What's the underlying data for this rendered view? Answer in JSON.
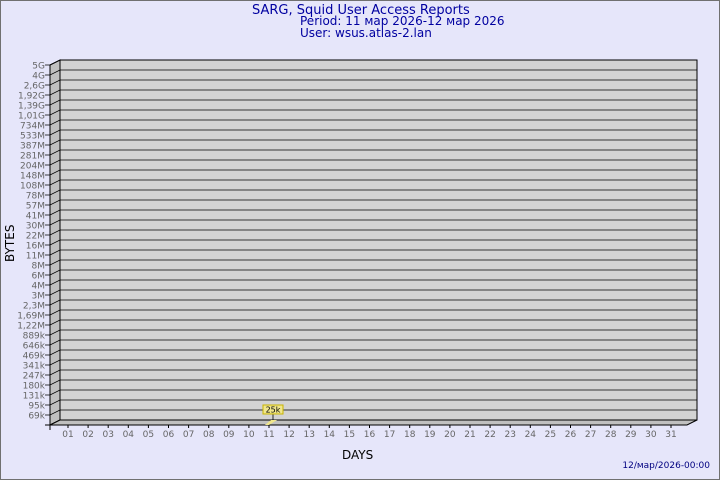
{
  "header": {
    "title": "SARG, Squid User Access Reports",
    "period": "Period: 11 мар 2026-12 мар 2026",
    "user": "User: wsus.atlas-2.lan"
  },
  "footer": {
    "timestamp": "12/мар/2026-00:00"
  },
  "chart_data": {
    "type": "bar",
    "title": "SARG, Squid User Access Reports",
    "xlabel": "DAYS",
    "ylabel": "BYTES",
    "y_scale": "log",
    "y_ticks": [
      "5G",
      "4G",
      "2,6G",
      "1,92G",
      "1,39G",
      "1,01G",
      "734M",
      "533M",
      "387M",
      "281M",
      "204M",
      "148M",
      "108M",
      "78M",
      "57M",
      "41M",
      "30M",
      "22M",
      "16M",
      "11M",
      "8M",
      "6M",
      "4M",
      "3M",
      "2,3M",
      "1,69M",
      "1,22M",
      "889k",
      "646k",
      "469k",
      "341k",
      "247k",
      "180k",
      "131k",
      "95k",
      "69k"
    ],
    "categories": [
      "01",
      "02",
      "03",
      "04",
      "05",
      "06",
      "07",
      "08",
      "09",
      "10",
      "11",
      "12",
      "13",
      "14",
      "15",
      "16",
      "17",
      "18",
      "19",
      "20",
      "21",
      "22",
      "23",
      "24",
      "25",
      "26",
      "27",
      "28",
      "29",
      "30",
      "31"
    ],
    "bars": [
      {
        "day": "11",
        "value": 25000,
        "label": "25k"
      }
    ],
    "grid": true,
    "colors": {
      "background": "#e6e6fa",
      "plot": "#d3d3d3",
      "bar": "#f0e68c",
      "text": "#0000a0",
      "ticks": "#666666"
    }
  }
}
